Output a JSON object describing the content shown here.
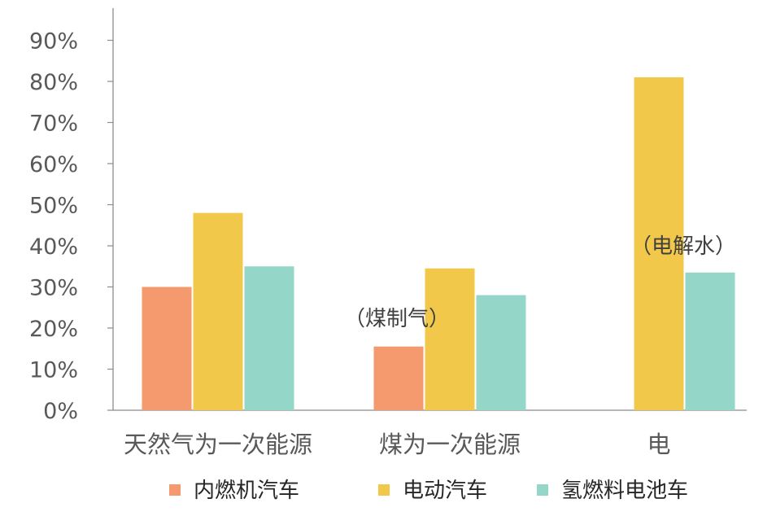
{
  "chart_data": {
    "type": "bar",
    "categories": [
      "天然气为一次能源",
      "煤为一次能源",
      "电"
    ],
    "series": [
      {
        "name": "内燃机汽车",
        "color": "#F59A6E",
        "values": [
          30,
          15.5,
          null
        ]
      },
      {
        "name": "电动汽车",
        "color": "#F2C84B",
        "values": [
          48,
          34.5,
          81
        ]
      },
      {
        "name": "氢燃料电池车",
        "color": "#94D6C8",
        "values": [
          35,
          28,
          33.5
        ]
      }
    ],
    "ylim": [
      0,
      90
    ],
    "yticks": [
      "0%",
      "10%",
      "20%",
      "30%",
      "40%",
      "50%",
      "60%",
      "70%",
      "80%",
      "90%"
    ],
    "annotations": [
      {
        "text": "（煤制气）",
        "category_index": 1
      },
      {
        "text": "（电解水）",
        "category_index": 2
      }
    ],
    "legend_position": "bottom",
    "grid": false
  }
}
